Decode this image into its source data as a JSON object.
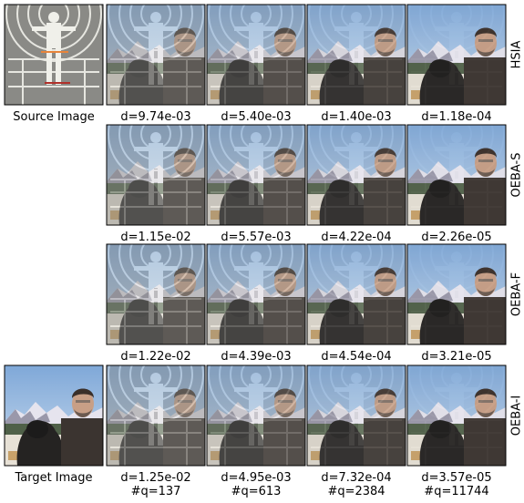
{
  "source_label": "Source Image",
  "target_label": "Target Image",
  "rows": [
    {
      "method": "HSIA",
      "distances": [
        "d=9.74e-03",
        "d=5.40e-03",
        "d=1.40e-03",
        "d=1.18e-04"
      ]
    },
    {
      "method": "OEBA-S",
      "distances": [
        "d=1.15e-02",
        "d=5.57e-03",
        "d=4.22e-04",
        "d=2.26e-05"
      ]
    },
    {
      "method": "OEBA-F",
      "distances": [
        "d=1.22e-02",
        "d=4.39e-03",
        "d=4.54e-04",
        "d=3.21e-05"
      ]
    },
    {
      "method": "OEBA-I",
      "distances": [
        "d=1.25e-02",
        "d=4.95e-03",
        "d=7.32e-04",
        "d=3.57e-05"
      ],
      "queries": [
        "#q=137",
        "#q=613",
        "#q=2384",
        "#q=11744"
      ]
    }
  ]
}
